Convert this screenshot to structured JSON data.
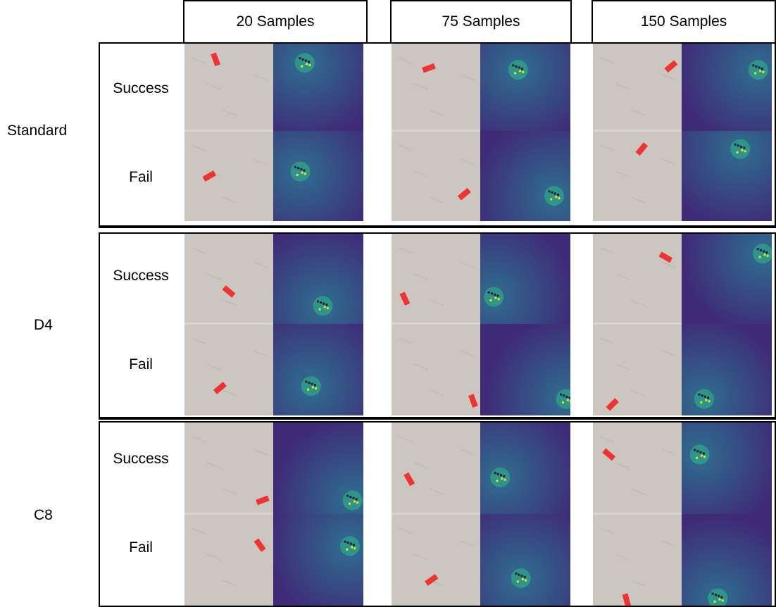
{
  "columns": [
    {
      "label": "20 Samples"
    },
    {
      "label": "75 Samples"
    },
    {
      "label": "150 Samples"
    }
  ],
  "rows": [
    {
      "label": "Standard",
      "outcomes": [
        "Success",
        "Fail"
      ]
    },
    {
      "label": "D4",
      "outcomes": [
        "Success",
        "Fail"
      ]
    },
    {
      "label": "C8",
      "outcomes": [
        "Success",
        "Fail"
      ]
    }
  ],
  "colors": {
    "table_surface": "#cbc7c0",
    "object_marker": "#ee3333",
    "heatmap_low": "#3f2a78",
    "heatmap_mid": "#2f6e8f",
    "heatmap_high": "#e6e22a"
  }
}
